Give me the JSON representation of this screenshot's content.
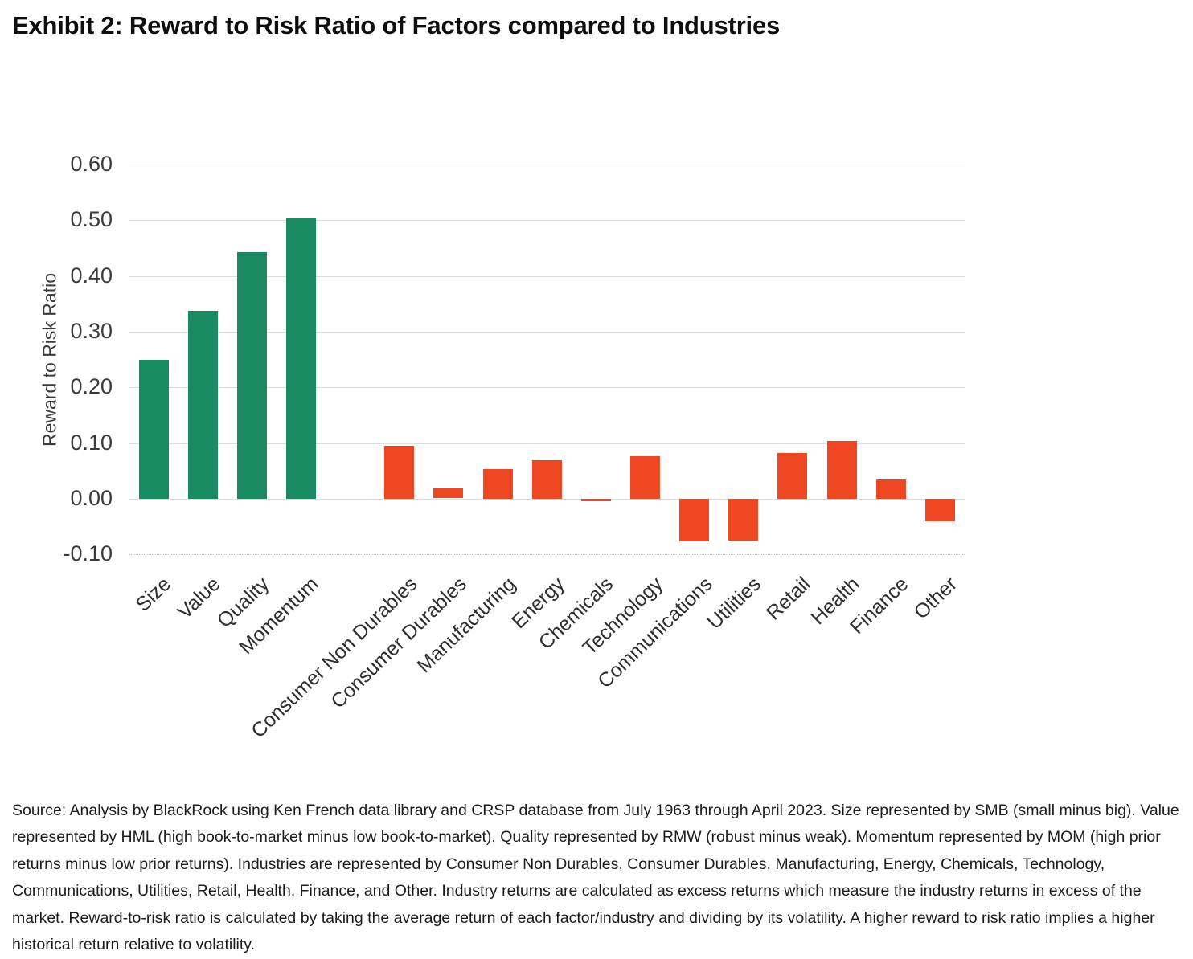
{
  "chart_data": {
    "type": "bar",
    "title": "Exhibit 2: Reward to Risk Ratio of Factors compared to Industries",
    "xlabel": "",
    "ylabel": "Reward to Risk Ratio",
    "ylim": [
      -0.1,
      0.6
    ],
    "ytick_labels": [
      "0.60",
      "0.50",
      "0.40",
      "0.30",
      "0.20",
      "0.10",
      "0.00",
      "-0.10"
    ],
    "grid": "horizontal gridlines on, bottom (-0.10) line dotted",
    "legend": "none",
    "gap_after_index": 3,
    "group_colors": {
      "factor": "#1a8a62",
      "industry": "#f04723"
    },
    "bars": [
      {
        "label": "Size",
        "value": 0.249,
        "group": "factor"
      },
      {
        "label": "Value",
        "value": 0.337,
        "group": "factor"
      },
      {
        "label": "Quality",
        "value": 0.443,
        "group": "factor"
      },
      {
        "label": "Momentum",
        "value": 0.504,
        "group": "factor"
      },
      {
        "label": "Consumer Non Durables",
        "value": 0.095,
        "group": "industry"
      },
      {
        "label": "Consumer Durables",
        "value": 0.018,
        "group": "industry"
      },
      {
        "label": "Manufacturing",
        "value": 0.053,
        "group": "industry"
      },
      {
        "label": "Energy",
        "value": 0.069,
        "group": "industry"
      },
      {
        "label": "Chemicals",
        "value": -0.005,
        "group": "industry"
      },
      {
        "label": "Technology",
        "value": 0.076,
        "group": "industry"
      },
      {
        "label": "Communications",
        "value": -0.077,
        "group": "industry"
      },
      {
        "label": "Utilities",
        "value": -0.075,
        "group": "industry"
      },
      {
        "label": "Retail",
        "value": 0.082,
        "group": "industry"
      },
      {
        "label": "Health",
        "value": 0.104,
        "group": "industry"
      },
      {
        "label": "Finance",
        "value": 0.034,
        "group": "industry"
      },
      {
        "label": "Other",
        "value": -0.04,
        "group": "industry"
      }
    ]
  },
  "footer": {
    "text": "Source: Analysis by BlackRock using Ken French data library and CRSP database from July 1963 through April 2023. Size represented by SMB (small minus big). Value represented by HML (high book-to-market minus low book-to-market). Quality represented by RMW (robust minus weak). Momentum represented by MOM (high prior returns minus low prior returns). Industries are represented by Consumer Non Durables, Consumer Durables, Manufacturing, Energy, Chemicals, Technology, Communications, Utilities, Retail, Health, Finance, and Other. Industry returns are calculated as excess returns which measure the industry returns in excess of the market. Reward-to-risk ratio is calculated by taking the average return of each factor/industry and dividing by its volatility. A higher reward to risk ratio implies a higher historical return relative to volatility."
  },
  "colors": {
    "factor_green": "#1a8a62",
    "industry_orange": "#f04723",
    "gridline_gray": "#dcdcdc",
    "text_dark": "#1c1c1c"
  }
}
